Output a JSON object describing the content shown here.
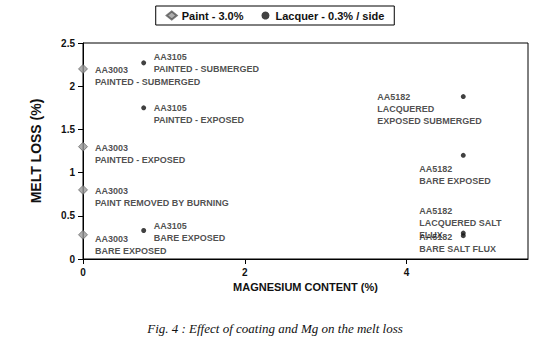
{
  "chart_data": {
    "type": "scatter",
    "title": "Fig. 4 : Effect of coating and Mg on the melt loss",
    "x_label": "MAGNESIUM CONTENT (%)",
    "y_label": "MELT LOSS (%)",
    "xlim": [
      0,
      5.5
    ],
    "xticks": [
      0,
      2,
      4
    ],
    "ylim": [
      0,
      2.5
    ],
    "yticks": [
      0,
      0.5,
      1,
      1.5,
      2,
      2.5
    ],
    "grid": false,
    "legend": "top",
    "series": [
      {
        "name": "Paint - 3.0%",
        "color": "#9a9a9a",
        "marker": "diamond",
        "x": [
          0,
          0,
          0,
          0
        ],
        "values": [
          2.2,
          1.3,
          0.8,
          0.28
        ],
        "labels": [
          "AA3003\nPAINTED - SUBMERGED",
          "AA3003\nPAINTED - EXPOSED",
          "AA3003\nPAINT REMOVED BY BURNING",
          "AA3003\nBARE EXPOSED"
        ]
      },
      {
        "name": "Lacquer - 0.3% / side",
        "color": "#111111",
        "marker": "circle",
        "x": [
          0.75,
          0.75,
          0.75,
          4.7,
          4.7,
          4.7,
          4.7
        ],
        "values": [
          2.27,
          1.75,
          0.33,
          1.88,
          1.2,
          0.3,
          0.27
        ],
        "labels": [
          "AA3105\nPAINTED - SUBMERGED",
          "AA3105\nPAINTED - EXPOSED",
          "AA3105\nBARE EXPOSED",
          "AA5182\nLACQUERED\nEXPOSED SUBMERGED",
          "AA5182\nBARE EXPOSED",
          "AA5182\nLACQUERED SALT\nFLUX",
          "AA5182\nBARE SALT FLUX"
        ]
      }
    ]
  }
}
